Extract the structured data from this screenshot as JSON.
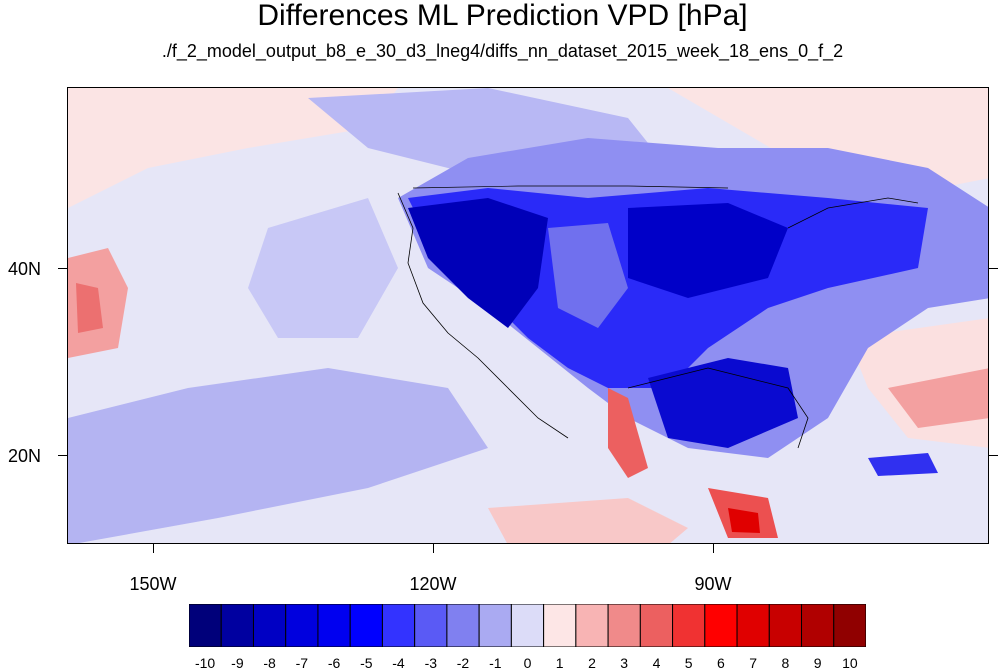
{
  "title": "Differences ML Prediction VPD [hPa]",
  "subtitle": "./f_2_model_output_b8_e_30_d3_lneg4/diffs_nn_dataset_2015_week_18_ens_0_f_2",
  "axes": {
    "lat_labels": [
      "40N",
      "20N"
    ],
    "lon_labels": [
      "150W",
      "120W",
      "90W"
    ]
  },
  "colorbar": {
    "labels": [
      "-10",
      "-9",
      "-8",
      "-7",
      "-6",
      "-5",
      "-4",
      "-3",
      "-2",
      "-1",
      "0",
      "1",
      "2",
      "3",
      "4",
      "5",
      "6",
      "7",
      "8",
      "9",
      "10"
    ],
    "colors": [
      "#00007a",
      "#0000a0",
      "#0000c4",
      "#0000de",
      "#0000f0",
      "#0000ff",
      "#3333ff",
      "#5a5af5",
      "#8080f0",
      "#aaaaf2",
      "#dcdcf8",
      "#fde6e6",
      "#f8b4b4",
      "#f08a8a",
      "#ec6060",
      "#f03232",
      "#ff0000",
      "#e00000",
      "#c80000",
      "#b00000",
      "#900000"
    ]
  },
  "colors": {
    "background_field": "#e6e6f7",
    "strong_negative": "#0000cc",
    "mid_negative": "#6a6af2",
    "light_negative": "#b4b4f2",
    "light_positive": "#fbe0e0",
    "mid_positive": "#f3a0a0",
    "strong_positive": "#e82a2a"
  }
}
